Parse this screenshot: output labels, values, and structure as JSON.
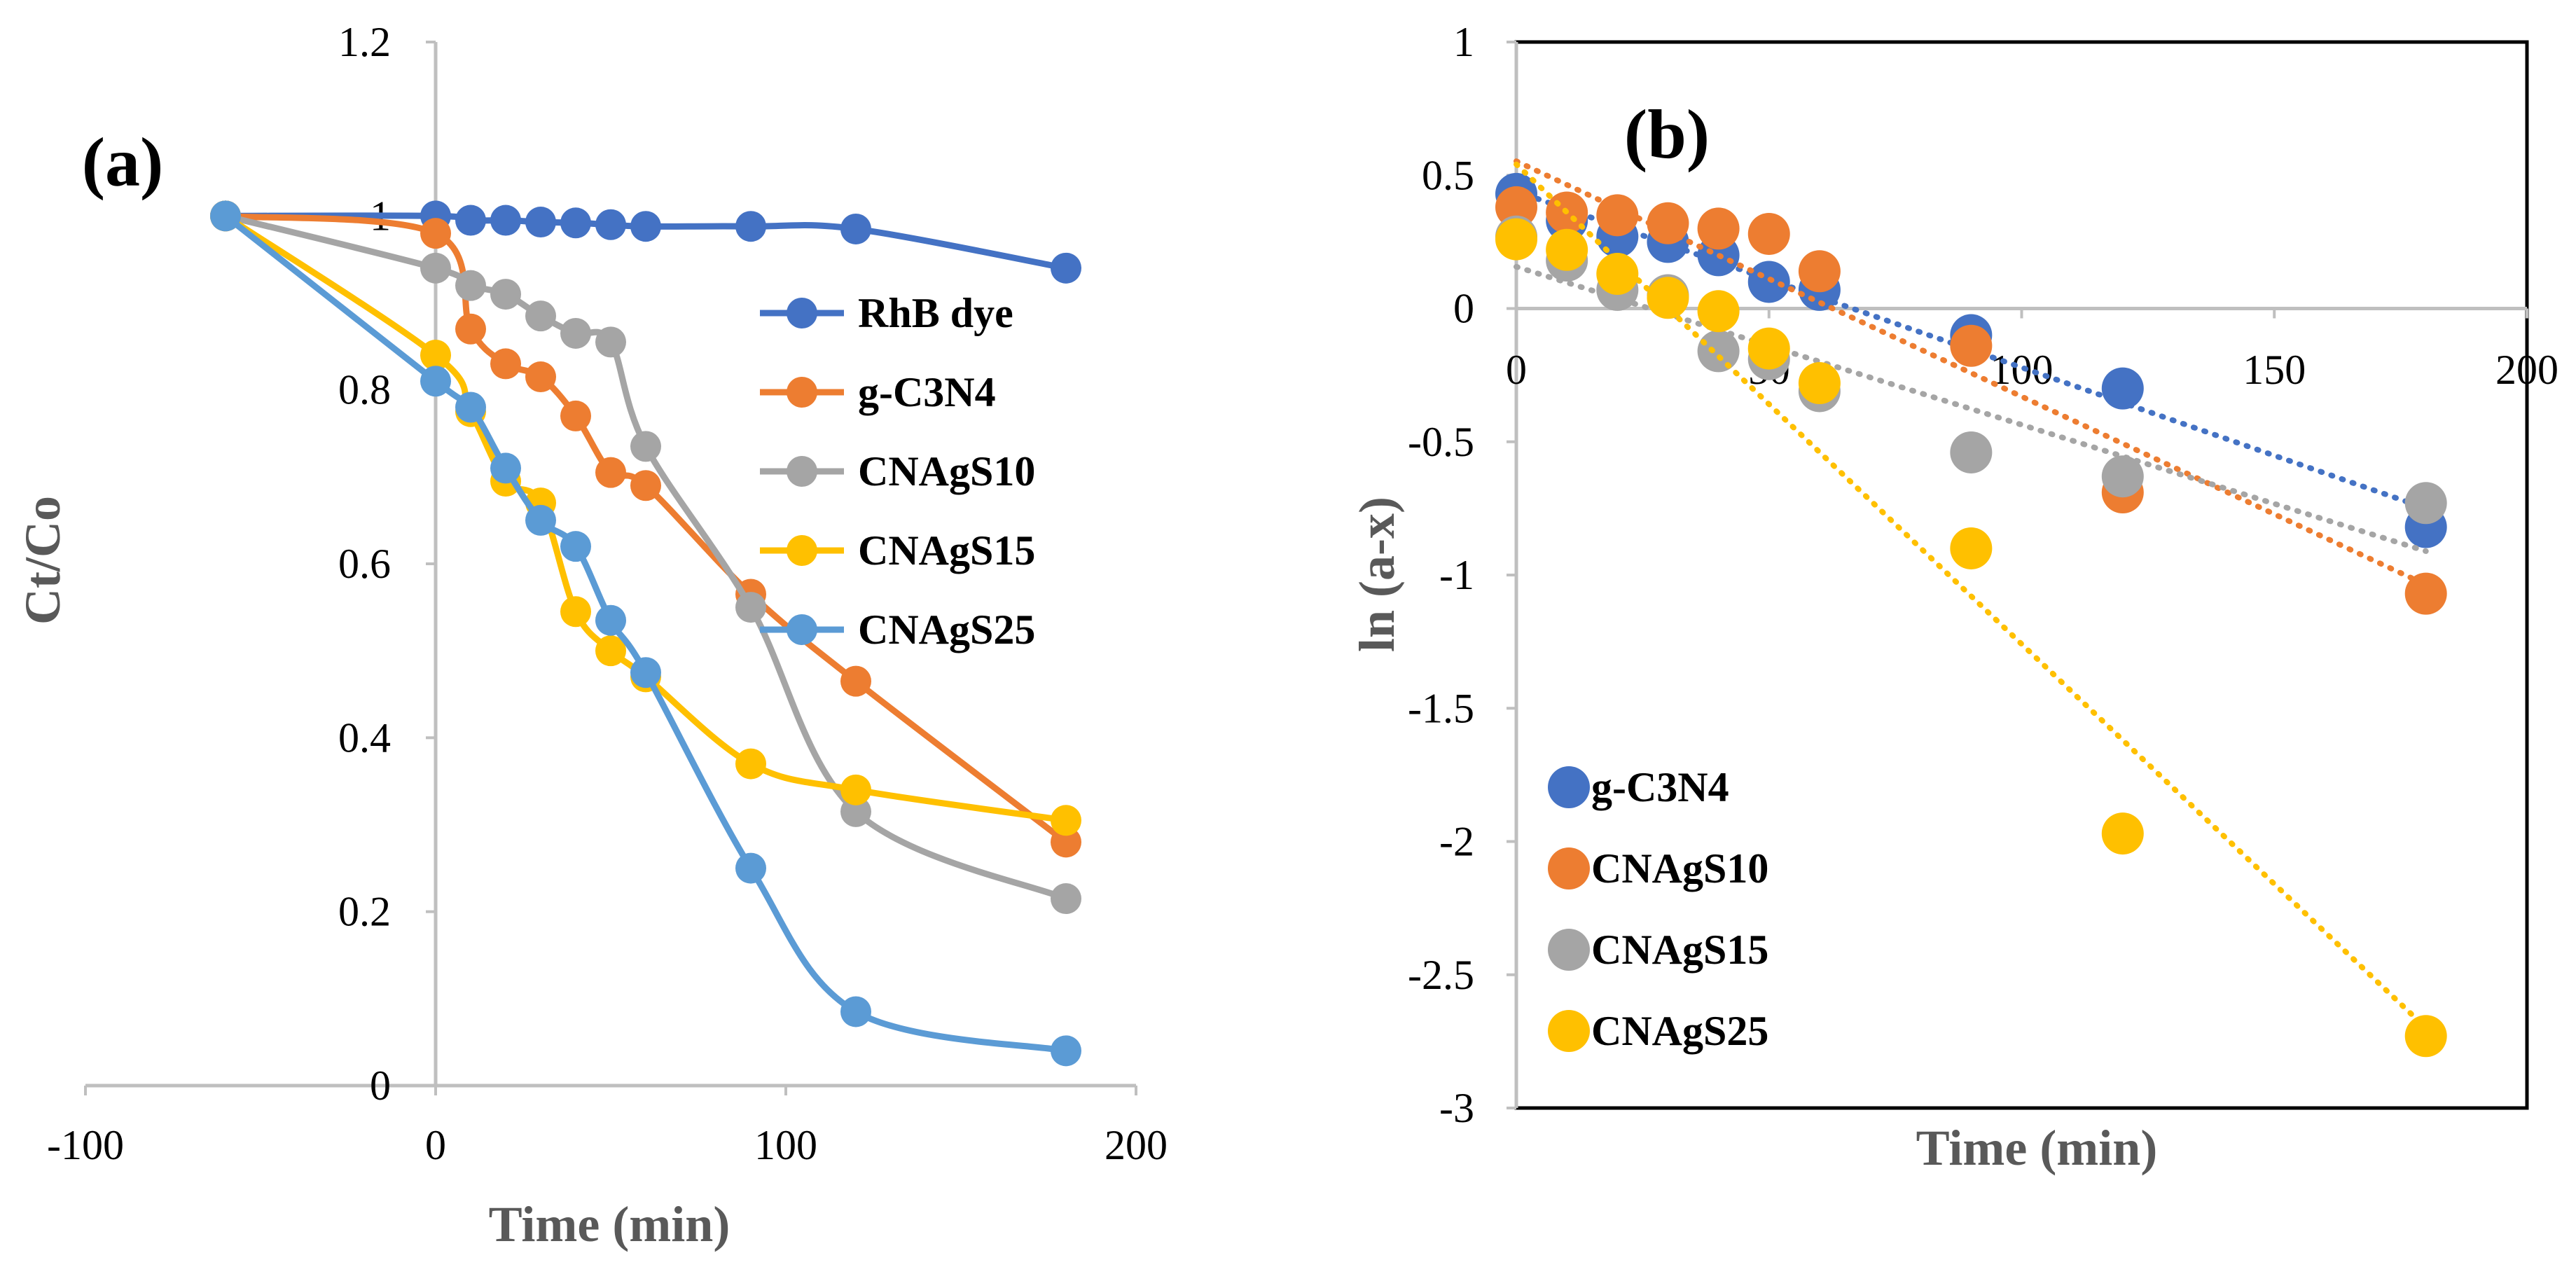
{
  "chart_data": [
    {
      "type": "line",
      "panel_label": "(a)",
      "title": "",
      "xlabel": "Time (min)",
      "ylabel": "Ct/Co",
      "xlim": [
        -100,
        200
      ],
      "ylim": [
        0,
        1.2
      ],
      "xticks": [
        -100,
        0,
        100,
        200
      ],
      "xtick_labels": [
        "-100",
        "0",
        "100",
        "200"
      ],
      "yticks": [
        0,
        0.2,
        0.4,
        0.6,
        0.8,
        1,
        1.2
      ],
      "ytick_labels": [
        "0",
        "0.2",
        "0.4",
        "0.6",
        "0.8",
        "1",
        "1.2"
      ],
      "grid": false,
      "legend_position": "right",
      "series": [
        {
          "name": "RhB dye",
          "color": "#4472C4",
          "x": [
            -60,
            0,
            10,
            20,
            30,
            40,
            50,
            60,
            90,
            120,
            180
          ],
          "y": [
            1.0,
            1.0,
            0.995,
            0.995,
            0.993,
            0.992,
            0.99,
            0.988,
            0.988,
            0.985,
            0.94
          ]
        },
        {
          "name": "g-C3N4",
          "color": "#ED7D31",
          "x": [
            -60,
            0,
            10,
            20,
            30,
            40,
            50,
            60,
            90,
            120,
            180
          ],
          "y": [
            1.0,
            0.98,
            0.87,
            0.83,
            0.815,
            0.77,
            0.705,
            0.69,
            0.565,
            0.465,
            0.28
          ]
        },
        {
          "name": "CNAgS10",
          "color": "#A5A5A5",
          "x": [
            -60,
            0,
            10,
            20,
            30,
            40,
            50,
            60,
            90,
            120,
            180
          ],
          "y": [
            1.0,
            0.94,
            0.92,
            0.91,
            0.885,
            0.865,
            0.855,
            0.735,
            0.55,
            0.315,
            0.215
          ]
        },
        {
          "name": "CNAgS15",
          "color": "#FFC000",
          "x": [
            -60,
            0,
            10,
            20,
            30,
            40,
            50,
            60,
            90,
            120,
            180
          ],
          "y": [
            1.0,
            0.84,
            0.775,
            0.695,
            0.67,
            0.545,
            0.5,
            0.47,
            0.37,
            0.34,
            0.305
          ]
        },
        {
          "name": "CNAgS25",
          "color": "#5B9BD5",
          "x": [
            -60,
            0,
            10,
            20,
            30,
            40,
            50,
            60,
            90,
            120,
            180
          ],
          "y": [
            1.0,
            0.81,
            0.78,
            0.71,
            0.65,
            0.62,
            0.535,
            0.475,
            0.25,
            0.085,
            0.04
          ]
        }
      ]
    },
    {
      "type": "scatter",
      "panel_label": "(b)",
      "title": "",
      "xlabel": "Time (min)",
      "ylabel": "ln (a-x)",
      "xlim": [
        0,
        200
      ],
      "ylim": [
        -3,
        1
      ],
      "xticks": [
        0,
        50,
        100,
        150,
        200
      ],
      "xtick_labels": [
        "0",
        "50",
        "100",
        "150",
        "200"
      ],
      "yticks": [
        -3,
        -2.5,
        -2,
        -1.5,
        -1,
        -0.5,
        0,
        0.5,
        1
      ],
      "ytick_labels": [
        "-3",
        "-2.5",
        "-2",
        "-1.5",
        "-1",
        "-0.5",
        "0",
        "0.5",
        "1"
      ],
      "grid": false,
      "legend_position": "bottom-left",
      "trendline": "linear, dotted",
      "series": [
        {
          "name": "g-C3N4",
          "color": "#4472C4",
          "x": [
            0,
            10,
            20,
            30,
            40,
            50,
            60,
            90,
            120,
            180
          ],
          "y": [
            0.43,
            0.33,
            0.27,
            0.25,
            0.2,
            0.1,
            0.07,
            -0.1,
            -0.3,
            -0.82
          ]
        },
        {
          "name": "CNAgS10",
          "color": "#ED7D31",
          "x": [
            0,
            10,
            20,
            30,
            40,
            50,
            60,
            90,
            120,
            180
          ],
          "y": [
            0.38,
            0.36,
            0.35,
            0.32,
            0.3,
            0.28,
            0.14,
            -0.14,
            -0.69,
            -1.07
          ]
        },
        {
          "name": "CNAgS15",
          "color": "#A5A5A5",
          "x": [
            0,
            10,
            20,
            30,
            40,
            50,
            60,
            90,
            120,
            180
          ],
          "y": [
            0.27,
            0.18,
            0.07,
            0.05,
            -0.16,
            -0.19,
            -0.31,
            -0.54,
            -0.63,
            -0.73
          ]
        },
        {
          "name": "CNAgS25",
          "color": "#FFC000",
          "x": [
            0,
            10,
            20,
            30,
            40,
            50,
            60,
            90,
            120,
            180
          ],
          "y": [
            0.26,
            0.22,
            0.13,
            0.04,
            -0.01,
            -0.15,
            -0.28,
            -0.9,
            -1.97,
            -2.73
          ]
        }
      ]
    }
  ]
}
